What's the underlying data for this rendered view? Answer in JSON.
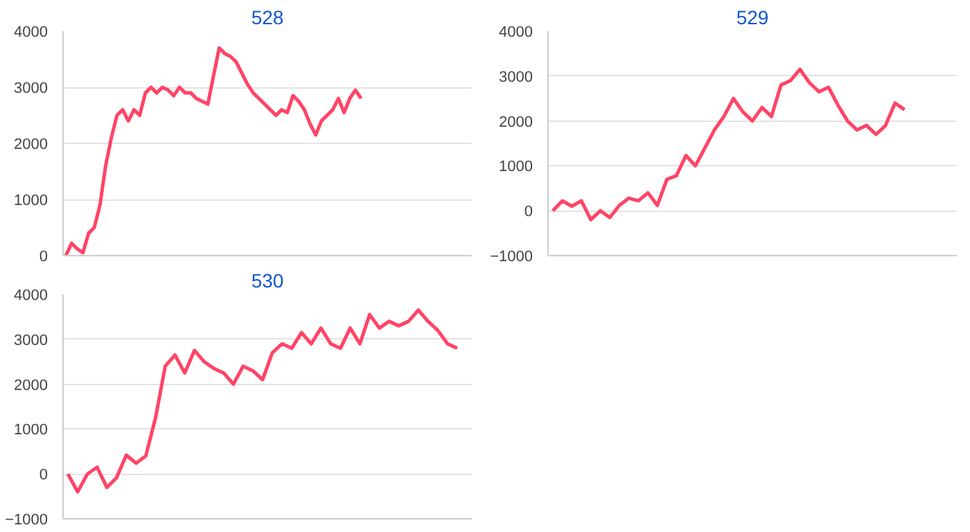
{
  "chart_data": [
    {
      "type": "line",
      "title": "528",
      "categories": [
        null,
        null,
        null,
        null,
        null,
        null,
        null,
        null,
        null,
        null,
        null,
        null,
        null,
        null,
        null,
        null,
        null,
        null,
        null,
        null,
        null,
        null,
        null,
        null,
        null,
        null,
        null,
        null,
        null,
        null,
        null,
        null,
        null,
        null,
        null,
        null,
        null,
        null,
        null,
        null,
        null,
        null,
        null,
        null,
        null,
        null,
        null,
        null,
        null,
        null,
        null,
        null,
        null,
        null,
        null,
        null,
        null,
        null,
        null,
        null,
        null,
        null,
        null,
        null,
        null,
        null,
        null,
        null,
        null,
        null,
        null,
        null
      ],
      "series": [
        {
          "color": "#ff4466",
          "values": [
            0,
            220,
            120,
            50,
            400,
            500,
            900,
            1600,
            2100,
            2500,
            2600,
            2400,
            2600,
            2500,
            2900,
            3000,
            2900,
            3000,
            2950,
            2850,
            3000,
            2900,
            2900,
            2800,
            2750,
            2700,
            3200,
            3700,
            3600,
            3550,
            3450,
            3250,
            3050,
            2900,
            2800,
            2700,
            2600,
            2500,
            2600,
            2550,
            2850,
            2750,
            2600,
            2350,
            2150,
            2400,
            2500,
            2600,
            2800,
            2550,
            2800,
            2950,
            2800,
            null,
            null,
            null,
            null,
            null,
            null,
            null,
            null,
            null,
            null,
            null,
            null,
            null,
            null,
            null,
            null,
            null,
            null,
            null
          ]
        }
      ],
      "ylim": [
        0,
        4000
      ],
      "yticks": [
        0,
        1000,
        2000,
        3000,
        4000
      ],
      "grid": "y",
      "tick_labels": "y"
    },
    {
      "type": "line",
      "title": "529",
      "categories": [
        null,
        null,
        null,
        null,
        null,
        null,
        null,
        null,
        null,
        null,
        null,
        null,
        null,
        null,
        null,
        null,
        null,
        null,
        null,
        null,
        null,
        null,
        null,
        null,
        null,
        null,
        null,
        null,
        null,
        null,
        null,
        null,
        null,
        null,
        null,
        null,
        null,
        null,
        null,
        null,
        null,
        null,
        null
      ],
      "series": [
        {
          "color": "#ff4466",
          "values": [
            0,
            220,
            100,
            220,
            -200,
            0,
            -150,
            120,
            280,
            220,
            400,
            120,
            700,
            780,
            1230,
            1000,
            1400,
            1800,
            2100,
            2500,
            2200,
            2000,
            2300,
            2100,
            2800,
            2900,
            3150,
            2850,
            2650,
            2750,
            2350,
            2000,
            1800,
            1900,
            1700,
            1900,
            2400,
            2250,
            null,
            null,
            null,
            null,
            null
          ]
        }
      ],
      "ylim": [
        -1000,
        4000
      ],
      "yticks": [
        -1000,
        0,
        1000,
        2000,
        3000,
        4000
      ],
      "grid": "y",
      "tick_labels": "y"
    },
    {
      "type": "line",
      "title": "530",
      "categories": [
        null,
        null,
        null,
        null,
        null,
        null,
        null,
        null,
        null,
        null,
        null,
        null,
        null,
        null,
        null,
        null,
        null,
        null,
        null,
        null,
        null,
        null,
        null,
        null,
        null,
        null,
        null,
        null,
        null,
        null,
        null,
        null,
        null,
        null,
        null,
        null,
        null,
        null,
        null,
        null,
        null,
        null
      ],
      "series": [
        {
          "color": "#ff4466",
          "values": [
            0,
            -400,
            0,
            150,
            -300,
            -80,
            420,
            240,
            400,
            1250,
            2400,
            2650,
            2250,
            2750,
            2500,
            2350,
            2250,
            2000,
            2400,
            2300,
            2100,
            2700,
            2900,
            2800,
            3150,
            2900,
            3250,
            2900,
            2800,
            3250,
            2900,
            3550,
            3250,
            3400,
            3300,
            3400,
            3650,
            3400,
            3200,
            2900,
            2800,
            null
          ]
        }
      ],
      "ylim": [
        -1000,
        4000
      ],
      "yticks": [
        -1000,
        0,
        1000,
        2000,
        3000,
        4000
      ],
      "grid": "y",
      "tick_labels": "y"
    }
  ]
}
